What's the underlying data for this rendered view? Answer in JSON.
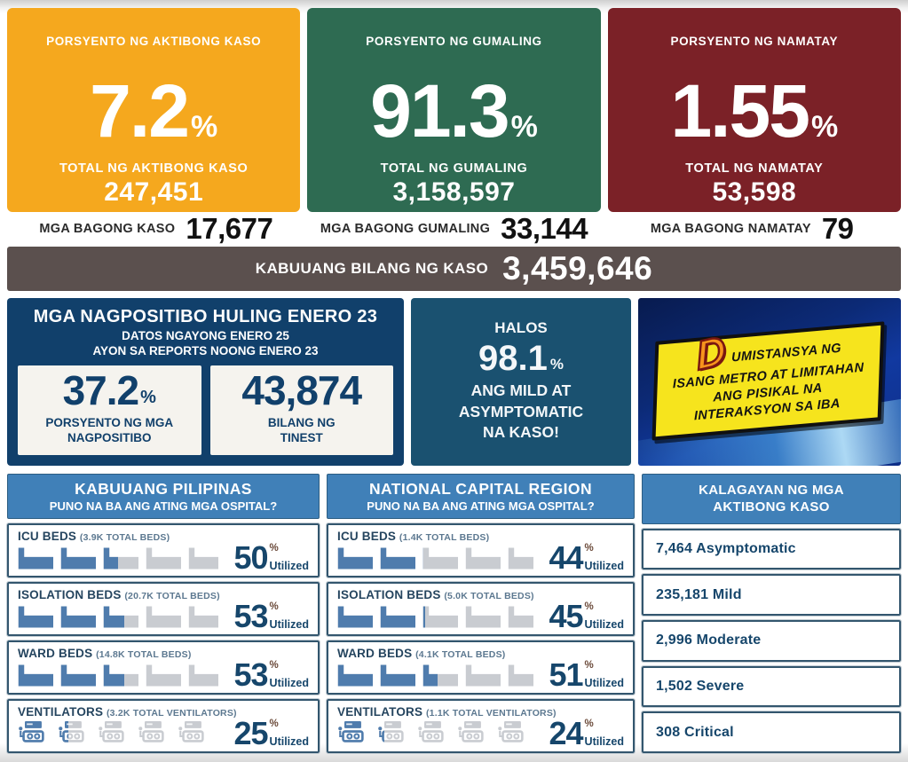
{
  "top_cards": [
    {
      "label": "PORSYENTO NG AKTIBONG KASO",
      "percent": "7.2",
      "total_label": "TOTAL NG AKTIBONG KASO",
      "total_value": "247,451"
    },
    {
      "label": "PORSYENTO NG GUMALING",
      "percent": "91.3",
      "total_label": "TOTAL NG GUMALING",
      "total_value": "3,158,597"
    },
    {
      "label": "PORSYENTO NG NAMATAY",
      "percent": "1.55",
      "total_label": "TOTAL NG NAMATAY",
      "total_value": "53,598"
    }
  ],
  "new_cases": [
    {
      "label": "MGA BAGONG KASO",
      "value": "17,677"
    },
    {
      "label": "MGA BAGONG GUMALING",
      "value": "33,144"
    },
    {
      "label": "MGA BAGONG NAMATAY",
      "value": "79"
    }
  ],
  "total_bar": {
    "label": "KABUUANG BILANG NG KASO",
    "value": "3,459,646"
  },
  "positivity": {
    "title": "MGA NAGPOSITIBO HULING ENERO 23",
    "subtitle1": "DATOS NGAYONG ENERO 25",
    "subtitle2": "AYON SA REPORTS NOONG ENERO 23",
    "box1": {
      "value": "37.2",
      "sign": "%",
      "label1": "PORSYENTO NG MGA",
      "label2": "NAGPOSITIBO"
    },
    "box2": {
      "value": "43,874",
      "label1": "BILANG NG",
      "label2": "TINEST"
    }
  },
  "mild": {
    "intro": "HALOS",
    "percent": "98.1",
    "sign": "%",
    "line1": "ANG MILD AT",
    "line2": "ASYMPTOMATIC",
    "line3": "NA KASO!"
  },
  "advisory": {
    "initial": "D",
    "line1": "UMISTANSYA NG",
    "line2": "ISANG METRO AT LIMITAHAN",
    "line3": "ANG PISIKAL NA",
    "line4": "INTERAKSYON SA IBA"
  },
  "labels": {
    "percent_sign": "%",
    "utilized": "Utilized"
  },
  "hospital": {
    "columns": [
      {
        "title": "KABUUANG PILIPINAS",
        "subtitle": "PUNO NA BA ANG ATING MGA OSPITAL?",
        "rows": [
          {
            "name": "ICU BEDS",
            "detail": "(3.9K TOTAL BEDS)",
            "percent": 50,
            "icon": "bed"
          },
          {
            "name": "ISOLATION BEDS",
            "detail": "(20.7K TOTAL BEDS)",
            "percent": 53,
            "icon": "bed"
          },
          {
            "name": "WARD BEDS",
            "detail": "(14.8K TOTAL BEDS)",
            "percent": 53,
            "icon": "bed"
          },
          {
            "name": "VENTILATORS",
            "detail": "(3.2K TOTAL VENTILATORS)",
            "percent": 25,
            "icon": "ventilator"
          }
        ]
      },
      {
        "title": "NATIONAL CAPITAL REGION",
        "subtitle": "PUNO NA BA ANG ATING MGA OSPITAL?",
        "rows": [
          {
            "name": "ICU BEDS",
            "detail": "(1.4K TOTAL BEDS)",
            "percent": 44,
            "icon": "bed"
          },
          {
            "name": "ISOLATION BEDS",
            "detail": "(5.0K TOTAL BEDS)",
            "percent": 45,
            "icon": "bed"
          },
          {
            "name": "WARD BEDS",
            "detail": "(4.1K TOTAL BEDS)",
            "percent": 51,
            "icon": "bed"
          },
          {
            "name": "VENTILATORS",
            "detail": "(1.1K TOTAL VENTILATORS)",
            "percent": 24,
            "icon": "ventilator"
          }
        ]
      }
    ]
  },
  "active_cases": {
    "title1": "KALAGAYAN NG MGA",
    "title2": "AKTIBONG KASO",
    "items": [
      {
        "text": "7,464 Asymptomatic"
      },
      {
        "text": "235,181 Mild"
      },
      {
        "text": "2,996 Moderate"
      },
      {
        "text": "1,502 Severe"
      },
      {
        "text": "308 Critical"
      }
    ]
  },
  "colors": {
    "active_orange": "#F5A81E",
    "recovered_green": "#2E6B52",
    "deaths_red": "#7B2127",
    "total_taupe": "#5B504E",
    "panel_navy": "#11406B",
    "mild_navy": "#1A5170",
    "header_blue": "#4080B8",
    "text_navy": "#16466B",
    "icon_blue": "#4F7CAD",
    "icon_gray": "#C9CCD1",
    "advisory_yellow": "#F6E41D",
    "advisory_bg": "#0C2A76",
    "d_orange": "#F7941D"
  },
  "chart_data": [
    {
      "type": "bar",
      "title": "KABUUANG PILIPINAS — PUNO NA BA ANG ATING MGA OSPITAL?",
      "categories": [
        "ICU BEDS (3.9K total)",
        "ISOLATION BEDS (20.7K total)",
        "WARD BEDS (14.8K total)",
        "VENTILATORS (3.2K total)"
      ],
      "values": [
        50,
        53,
        53,
        25
      ],
      "ylabel": "% Utilized",
      "ylim": [
        0,
        100
      ],
      "style": "pictograph (5 icons per row)"
    },
    {
      "type": "bar",
      "title": "NATIONAL CAPITAL REGION — PUNO NA BA ANG ATING MGA OSPITAL?",
      "categories": [
        "ICU BEDS (1.4K total)",
        "ISOLATION BEDS (5.0K total)",
        "WARD BEDS (4.1K total)",
        "VENTILATORS (1.1K total)"
      ],
      "values": [
        44,
        45,
        51,
        24
      ],
      "ylabel": "% Utilized",
      "ylim": [
        0,
        100
      ],
      "style": "pictograph (5 icons per row)"
    },
    {
      "type": "table",
      "title": "KALAGAYAN NG MGA AKTIBONG KASO",
      "categories": [
        "Asymptomatic",
        "Mild",
        "Moderate",
        "Severe",
        "Critical"
      ],
      "values": [
        7464,
        235181,
        2996,
        1502,
        308
      ]
    },
    {
      "type": "table",
      "title": "COVID-19 summary statistics",
      "categories": [
        "Active %",
        "Active total",
        "Recovered %",
        "Recovered total",
        "Deaths %",
        "Deaths total",
        "New cases",
        "New recoveries",
        "New deaths",
        "Total cases",
        "Positivity % (Enero 23)",
        "Tested (bilang ng tinest)",
        "Mild+Asymptomatic %"
      ],
      "values": [
        7.2,
        247451,
        91.3,
        3158597,
        1.55,
        53598,
        17677,
        33144,
        79,
        3459646,
        37.2,
        43874,
        98.1
      ]
    }
  ]
}
